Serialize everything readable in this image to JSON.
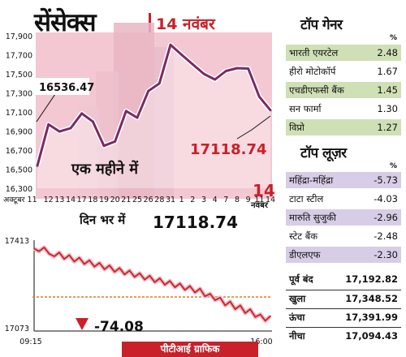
{
  "header": {
    "title": "सेंसेक्स",
    "date": "14 नवंबर"
  },
  "main_chart": {
    "label_text": "एक महीने में",
    "start_value": "16536.47",
    "end_value": "17118.74",
    "date_big": "14",
    "date_small": "नवंबर"
  },
  "intraday": {
    "title": "दिन भर में",
    "value": "17118.74",
    "change": "-74.08"
  },
  "top_gainers": {
    "title": "टॉप गेनर",
    "pct_symbol": "%",
    "rows": [
      {
        "name": "भारती एयरटेल",
        "value": "2.48"
      },
      {
        "name": "हीरो मोटोकॉर्प",
        "value": "1.67"
      },
      {
        "name": "एचडीएफसी बैंक",
        "value": "1.45"
      },
      {
        "name": "सन फार्मा",
        "value": "1.30"
      },
      {
        "name": "विप्रो",
        "value": "1.27"
      }
    ]
  },
  "top_losers": {
    "title": "टॉप लूज़र",
    "pct_symbol": "%",
    "rows": [
      {
        "name": "महिंद्रा-महिंद्रा",
        "value": "-5.73"
      },
      {
        "name": "टाटा स्टील",
        "value": "-4.03"
      },
      {
        "name": "मारुति सुजुकी",
        "value": "-2.96"
      },
      {
        "name": "स्टेट बैंक",
        "value": "-2.48"
      },
      {
        "name": "डीएलएफ",
        "value": "-2.30"
      }
    ]
  },
  "stats": [
    {
      "name": "पूर्व बंद",
      "value": "17,192.82"
    },
    {
      "name": "खुला",
      "value": "17,348.52"
    },
    {
      "name": "ऊंचा",
      "value": "17,391.99"
    },
    {
      "name": "नीचा",
      "value": "17,094.43"
    }
  ],
  "credit": "पीटीआई ग्राफिक",
  "colors": {
    "red": "#c9202a",
    "line": "#7b2a63",
    "gain_row": "#cfe0b6",
    "loss_row": "#d8cde6",
    "chart_bg": "#f3c8d2"
  },
  "chart_data": [
    {
      "type": "line",
      "x": [
        "अक्टूबर 11",
        "12",
        "13",
        "14",
        "17",
        "18",
        "19",
        "20",
        "21",
        "25",
        "26",
        "28",
        "31",
        "1",
        "2",
        "3",
        "4",
        "7",
        "8",
        "9",
        "11",
        "14"
      ],
      "values": [
        16536.47,
        16970,
        16895,
        16930,
        17085,
        17000,
        16745,
        16790,
        17110,
        17040,
        17320,
        17400,
        17805,
        17700,
        17600,
        17500,
        17440,
        17530,
        17560,
        17555,
        17260,
        17118.74
      ],
      "ylim": [
        16300,
        17900
      ],
      "yticks": [
        "16,300",
        "16,500",
        "16,700",
        "16,900",
        "17,100",
        "17,300",
        "17,500",
        "17,700",
        "17,900"
      ],
      "xlabel": "",
      "ylabel": ""
    },
    {
      "type": "line",
      "x_ticks": [
        "09:15",
        "16:00"
      ],
      "ylim": [
        17073,
        17413
      ],
      "yticks": [
        "17073",
        "17413"
      ],
      "reference_line": 17192.82,
      "values": [
        17380,
        17370,
        17385,
        17360,
        17350,
        17365,
        17340,
        17355,
        17330,
        17345,
        17320,
        17335,
        17310,
        17325,
        17300,
        17315,
        17290,
        17305,
        17280,
        17295,
        17270,
        17285,
        17260,
        17275,
        17250,
        17265,
        17240,
        17255,
        17230,
        17245,
        17220,
        17235,
        17210,
        17225,
        17195,
        17205,
        17180,
        17190,
        17160,
        17175,
        17145,
        17160,
        17130,
        17145,
        17115,
        17125,
        17100,
        17118.74
      ]
    }
  ]
}
